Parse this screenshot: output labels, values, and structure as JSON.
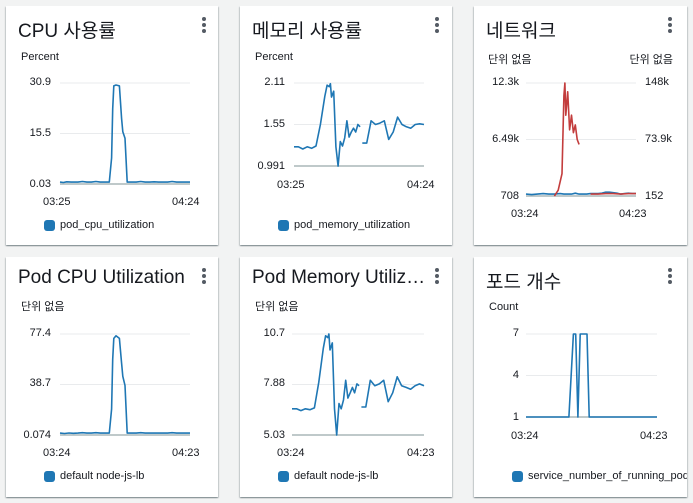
{
  "widgets": [
    {
      "title": "CPU 사용률",
      "unit_left": "Percent",
      "legend": "pod_cpu_utilization",
      "chart_data": {
        "type": "line",
        "y_ticks": [
          "30.9",
          "15.5",
          "0.03"
        ],
        "x_ticks": [
          "03:25",
          "04:24"
        ],
        "ylim": [
          0.03,
          30.9
        ],
        "series": [
          {
            "color": "#1f77b4",
            "x": [
              0,
              1.5,
              3,
              5,
              8,
              10,
              12,
              14,
              16,
              18,
              20,
              21,
              22,
              23,
              23.5,
              24,
              25,
              26.5,
              27.5,
              28,
              29,
              30,
              32,
              34,
              36,
              38,
              40,
              42,
              44,
              46,
              48,
              50,
              52,
              54,
              56,
              58
            ],
            "y": [
              0.6,
              0.5,
              0.7,
              0.6,
              0.6,
              0.8,
              0.6,
              0.6,
              0.8,
              0.6,
              0.6,
              0.6,
              0.6,
              8,
              23,
              30,
              30.3,
              30,
              20,
              16,
              14,
              0.6,
              0.6,
              0.6,
              0.8,
              0.6,
              0.6,
              0.7,
              0.6,
              0.6,
              0.6,
              0.8,
              0.6,
              0.6,
              0.6,
              0.6
            ]
          }
        ]
      }
    },
    {
      "title": "메모리 사용률",
      "unit_left": "Percent",
      "legend": "pod_memory_utilization",
      "chart_data": {
        "type": "line",
        "y_ticks": [
          "2.11",
          "1.55",
          "0.991"
        ],
        "x_ticks": [
          "03:25",
          "04:24"
        ],
        "ylim": [
          0.991,
          2.11
        ],
        "series": [
          {
            "color": "#1f77b4",
            "x": [
              0,
              2,
              4,
              6,
              8,
              10,
              12,
              14,
              15,
              16,
              16.5,
              17,
              18,
              19,
              20,
              21,
              22,
              23,
              24,
              25,
              26,
              27,
              28,
              29,
              30
            ],
            "y": [
              1.25,
              1.25,
              1.22,
              1.25,
              1.23,
              1.26,
              1.55,
              1.93,
              2.08,
              2.06,
              2.1,
              1.92,
              2.0,
              1.25,
              0.99,
              1.32,
              1.26,
              1.37,
              1.6,
              1.38,
              1.45,
              1.5,
              1.45,
              1.55,
              1.52
            ]
          },
          {
            "color": "#1f77b4",
            "x": [
              31,
              33,
              35,
              37,
              39,
              41,
              43,
              45,
              47,
              49,
              51,
              53,
              55,
              57,
              59
            ],
            "y": [
              1.3,
              1.3,
              1.6,
              1.55,
              1.57,
              1.6,
              1.35,
              1.45,
              1.65,
              1.55,
              1.52,
              1.5,
              1.55,
              1.56,
              1.55
            ]
          }
        ]
      }
    },
    {
      "title": "네트워크",
      "unit_left": "단위 없음",
      "unit_right": "단위 없음",
      "legend": "",
      "chart_data": {
        "type": "line",
        "y_ticks": [
          "12.3k",
          "6.49k",
          "708"
        ],
        "y_ticks_right": [
          "148k",
          "73.9k",
          "152"
        ],
        "x_ticks": [
          "03:24",
          "04:23"
        ],
        "ylim": [
          708,
          12300
        ],
        "series": [
          {
            "color": "#1f77b4",
            "x": [
              0,
              3,
              6,
              9,
              12,
              15,
              18,
              20,
              22,
              24,
              26,
              28,
              30,
              32,
              34,
              36,
              38,
              40,
              42,
              44,
              46,
              48,
              50,
              52,
              54,
              56,
              58
            ],
            "y": [
              900,
              850,
              900,
              950,
              900,
              900,
              950,
              900,
              900,
              900,
              1000,
              900,
              900,
              900,
              950,
              950,
              950,
              1000,
              1100,
              1100,
              1050,
              1000,
              900,
              950,
              1000,
              950,
              950
            ]
          },
          {
            "color": "#c33d3d",
            "x": [
              15,
              17,
              19,
              20,
              20.5,
              21,
              22,
              23,
              24,
              25,
              26,
              27,
              28
            ],
            "y": [
              700,
              1300,
              3000,
              11000,
              12300,
              9000,
              11400,
              7500,
              9000,
              7200,
              8000,
              6500,
              6000
            ]
          },
          {
            "color": "#c33d3d",
            "x": [
              34,
              38,
              42,
              46,
              50,
              54,
              58
            ],
            "y": [
              900,
              900,
              950,
              950,
              900,
              950,
              950
            ]
          }
        ]
      }
    },
    {
      "title": "Pod CPU Utilization",
      "unit_left": "단위 없음",
      "legend": "default node-js-lb",
      "chart_data": {
        "type": "line",
        "y_ticks": [
          "77.4",
          "38.7",
          "0.074"
        ],
        "x_ticks": [
          "03:24",
          "04:23"
        ],
        "ylim": [
          0.074,
          77.4
        ],
        "series": [
          {
            "color": "#1f77b4",
            "x": [
              0,
              2,
              4,
              6,
              8,
              10,
              12,
              14,
              16,
              18,
              20,
              21,
              22,
              23,
              23.5,
              24,
              25,
              26.5,
              27.5,
              28,
              29,
              30,
              32,
              34,
              36,
              38,
              40,
              42,
              44,
              46,
              48,
              50,
              52,
              54,
              56,
              58
            ],
            "y": [
              1.5,
              1.2,
              1.6,
              1.4,
              1.5,
              1.8,
              1.5,
              1.5,
              1.8,
              1.5,
              1.5,
              1.5,
              1.5,
              20,
              58,
              74,
              76,
              74,
              55,
              45,
              38,
              1.5,
              1.5,
              1.5,
              1.8,
              1.5,
              1.5,
              1.6,
              1.5,
              1.5,
              1.5,
              1.8,
              1.5,
              1.5,
              1.5,
              1.5
            ]
          }
        ]
      }
    },
    {
      "title": "Pod Memory Utiliza…",
      "unit_left": "단위 없음",
      "legend": "default node-js-lb",
      "chart_data": {
        "type": "line",
        "y_ticks": [
          "10.7",
          "7.88",
          "5.03"
        ],
        "x_ticks": [
          "03:24",
          "04:23"
        ],
        "ylim": [
          5.03,
          10.7
        ],
        "series": [
          {
            "color": "#1f77b4",
            "x": [
              0,
              2,
              4,
              6,
              8,
              10,
              12,
              14,
              15,
              16,
              16.5,
              17,
              18,
              19,
              20,
              21,
              22,
              23,
              24,
              25,
              26,
              27,
              28,
              29,
              30
            ],
            "y": [
              6.5,
              6.5,
              6.4,
              6.5,
              6.45,
              6.55,
              8.0,
              9.9,
              10.6,
              10.5,
              10.7,
              9.8,
              10.2,
              6.5,
              5.03,
              6.8,
              6.5,
              7.0,
              8.1,
              7.1,
              7.4,
              7.7,
              7.4,
              7.9,
              7.8
            ]
          },
          {
            "color": "#1f77b4",
            "x": [
              31,
              33,
              35,
              37,
              39,
              41,
              43,
              45,
              47,
              49,
              51,
              53,
              55,
              57,
              59
            ],
            "y": [
              6.6,
              6.6,
              8.1,
              7.8,
              7.9,
              8.1,
              6.9,
              7.4,
              8.3,
              7.8,
              7.7,
              7.6,
              7.8,
              7.9,
              7.8
            ]
          }
        ]
      }
    },
    {
      "title": "포드 개수",
      "unit_left": "Count",
      "legend": "service_number_of_running_pods",
      "chart_data": {
        "type": "line",
        "y_ticks": [
          "7",
          "4",
          "1"
        ],
        "x_ticks": [
          "03:24",
          "04:23"
        ],
        "ylim": [
          1,
          7
        ],
        "series": [
          {
            "color": "#1f77b4",
            "x": [
              0,
              18,
              19,
              21,
              22,
              23,
              24,
              25,
              26,
              27,
              28,
              30,
              31,
              58
            ],
            "y": [
              1,
              1,
              1,
              7,
              7,
              1,
              7,
              7,
              7,
              7,
              1,
              1,
              1,
              1
            ]
          }
        ]
      }
    }
  ]
}
